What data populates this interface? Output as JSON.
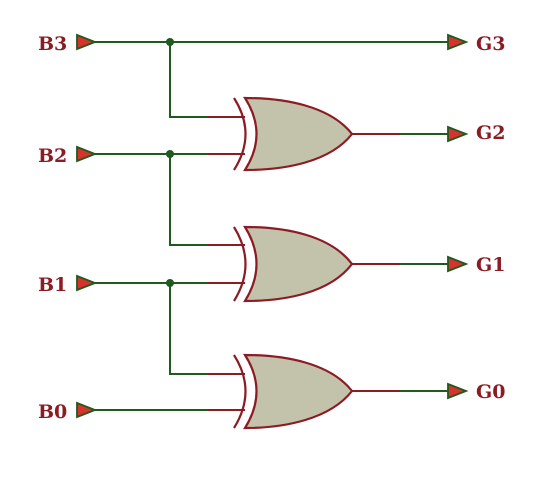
{
  "inputs": [
    {
      "id": "b3",
      "label": "B3"
    },
    {
      "id": "b2",
      "label": "B2"
    },
    {
      "id": "b1",
      "label": "B1"
    },
    {
      "id": "b0",
      "label": "B0"
    }
  ],
  "outputs": [
    {
      "id": "g3",
      "label": "G3"
    },
    {
      "id": "g2",
      "label": "G2"
    },
    {
      "id": "g1",
      "label": "G1"
    },
    {
      "id": "g0",
      "label": "G0"
    }
  ],
  "gates": [
    {
      "id": "xor-g2",
      "type": "XOR",
      "inputs": [
        "B3",
        "B2"
      ],
      "output": "G2"
    },
    {
      "id": "xor-g1",
      "type": "XOR",
      "inputs": [
        "B2",
        "B1"
      ],
      "output": "G1"
    },
    {
      "id": "xor-g0",
      "type": "XOR",
      "inputs": [
        "B1",
        "B0"
      ],
      "output": "G0"
    }
  ],
  "direct_connections": [
    {
      "from": "B3",
      "to": "G3"
    }
  ],
  "colors": {
    "wire": "#1f5a1f",
    "gate_pin": "#8b1c24",
    "gate_fill": "#c3c2ab",
    "label": "#8b1c24",
    "terminal": "#d9322c"
  }
}
